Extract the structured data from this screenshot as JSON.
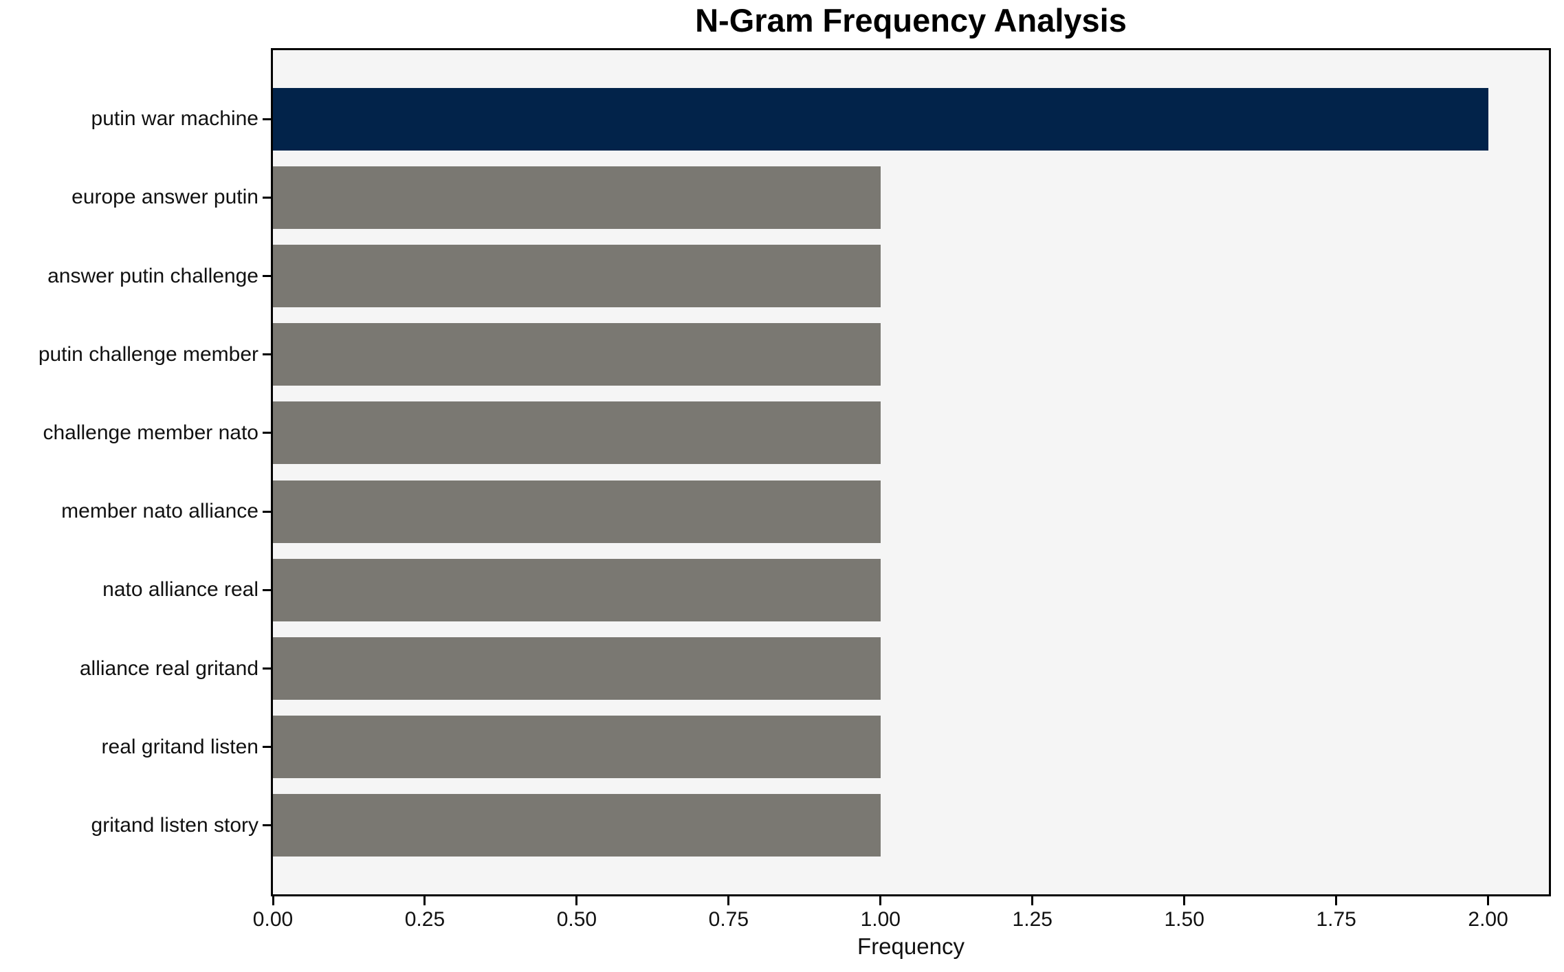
{
  "chart_data": {
    "type": "bar",
    "orientation": "horizontal",
    "title": "N-Gram Frequency Analysis",
    "xlabel": "Frequency",
    "categories": [
      "putin war machine",
      "europe answer putin",
      "answer putin challenge",
      "putin challenge member",
      "challenge member nato",
      "member nato alliance",
      "nato alliance real",
      "alliance real gritand",
      "real gritand listen",
      "gritand listen story"
    ],
    "values": [
      2,
      1,
      1,
      1,
      1,
      1,
      1,
      1,
      1,
      1
    ],
    "highlight_index": 0,
    "xlim": [
      0,
      2.1
    ],
    "xticks": [
      {
        "value": 0.0,
        "label": "0.00"
      },
      {
        "value": 0.25,
        "label": "0.25"
      },
      {
        "value": 0.5,
        "label": "0.50"
      },
      {
        "value": 0.75,
        "label": "0.75"
      },
      {
        "value": 1.0,
        "label": "1.00"
      },
      {
        "value": 1.25,
        "label": "1.25"
      },
      {
        "value": 1.5,
        "label": "1.50"
      },
      {
        "value": 1.75,
        "label": "1.75"
      },
      {
        "value": 2.0,
        "label": "2.00"
      }
    ],
    "grid": false,
    "legend_position": "none",
    "colors": {
      "highlight_bar": "#02234a",
      "default_bar": "#7a7872",
      "plot_background": "#f5f5f5",
      "figure_background": "#ffffff",
      "axis": "#000000",
      "text": "#111111"
    }
  }
}
